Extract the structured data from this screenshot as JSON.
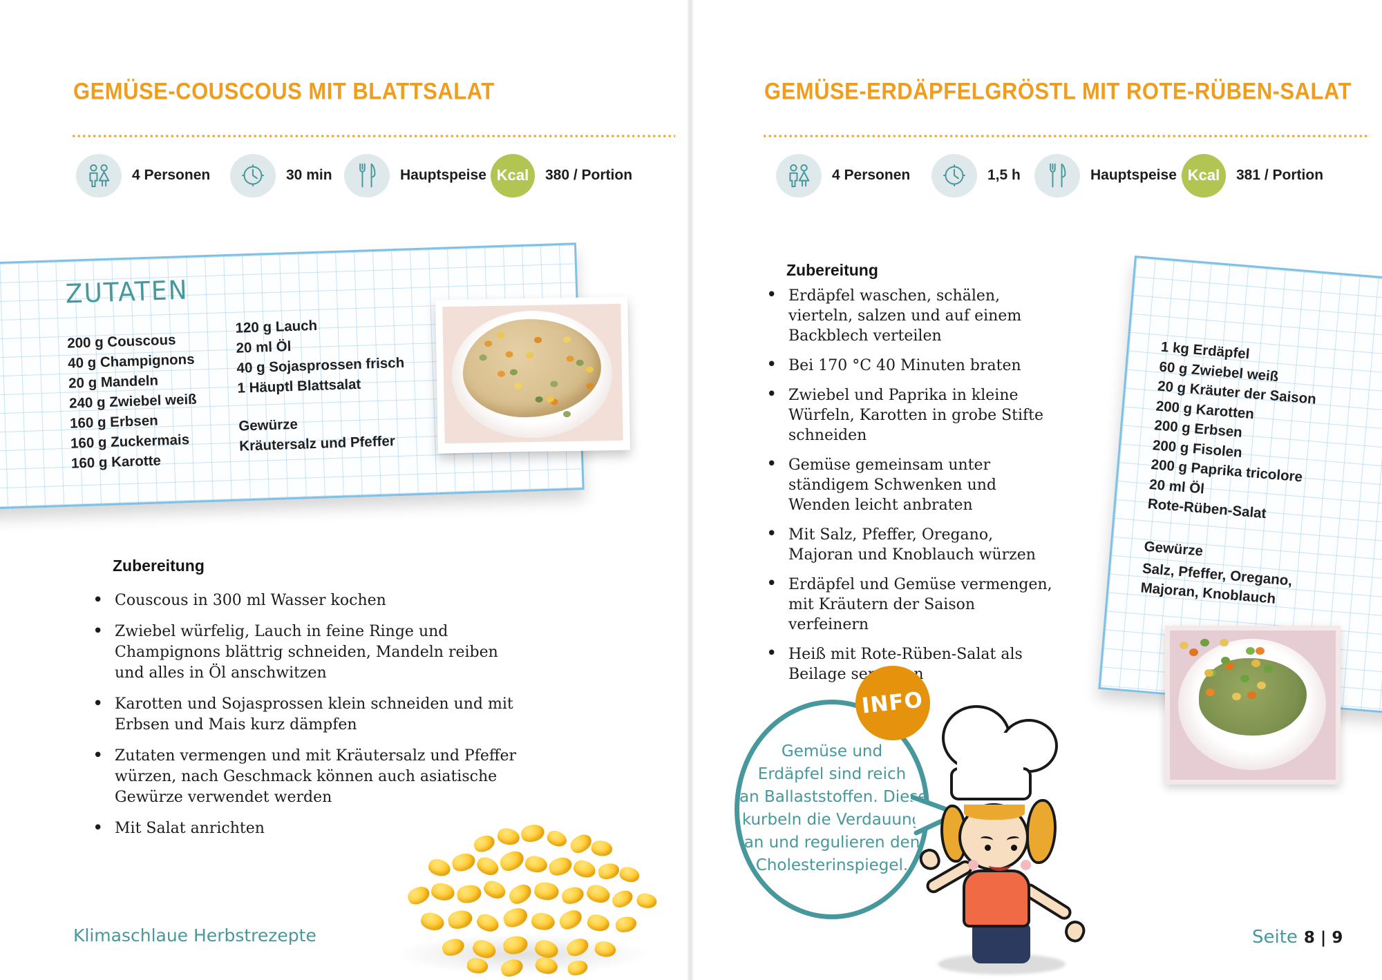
{
  "colors": {
    "accent_orange": "#EF9D1F",
    "accent_teal": "#47989C",
    "kcal_green": "#B2C553",
    "icon_circle_bg": "#DFE9EB",
    "grid_blue": "#CFE3F4",
    "card_border_blue": "#7FC0E4",
    "info_badge_orange": "#E5930C",
    "text_dark": "#1D1D1D"
  },
  "left": {
    "title": "GEMÜSE-COUSCOUS MIT BLATTSALAT",
    "meta": {
      "servings": "4 Personen",
      "time": "30 min",
      "course": "Hauptspeise",
      "kcal_badge": "Kcal",
      "kcal": "380 / Portion"
    },
    "ingredients": {
      "heading": "ZUTATEN",
      "col1": [
        "200 g Couscous",
        "40 g Champignons",
        "20 g Mandeln",
        "240 g Zwiebel weiß",
        "160 g Erbsen",
        "160 g Zuckermais",
        "160 g Karotte"
      ],
      "col2": [
        "120 g Lauch",
        "20 ml Öl",
        "40 g Sojasprossen frisch",
        "1 Häuptl Blattsalat"
      ],
      "spices_heading": "Gewürze",
      "spices": "Kräutersalz und Pfeffer"
    },
    "preparation": {
      "heading": "Zubereitung",
      "steps": [
        "Couscous in 300 ml Wasser kochen",
        "Zwiebel würfelig, Lauch in feine Ringe und Champignons blättrig schneiden, Mandeln reiben und alles in Öl anschwitzen",
        "Karotten und Sojasprossen klein schneiden und mit Erbsen und Mais kurz dämpfen",
        "Zutaten vermengen und mit Kräutersalz und Pfeffer würzen, nach Geschmack können auch asiatische Gewürze verwendet werden",
        "Mit Salat anrichten"
      ]
    },
    "footer": "Klimaschlaue Herbstrezepte"
  },
  "right": {
    "title": "GEMÜSE-ERDÄPFELGRÖSTL MIT ROTE-RÜBEN-SALAT",
    "meta": {
      "servings": "4 Personen",
      "time": "1,5 h",
      "course": "Hauptspeise",
      "kcal_badge": "Kcal",
      "kcal": "381 / Portion"
    },
    "preparation": {
      "heading": "Zubereitung",
      "steps": [
        "Erdäpfel waschen, schälen, vierteln, salzen und auf einem Backblech verteilen",
        "Bei 170 °C 40 Minuten braten",
        "Zwiebel und Paprika in kleine Würfeln, Karotten in grobe Stifte schneiden",
        "Gemüse gemeinsam unter ständigem Schwenken und Wenden leicht anbraten",
        "Mit Salz, Pfeffer, Oregano, Majoran und Knoblauch würzen",
        "Erdäpfel und Gemüse vermengen, mit Kräutern der Saison verfeinern",
        "Heiß mit Rote-Rüben-Salat als Beilage servieren"
      ]
    },
    "ingredients": {
      "items": [
        "1 kg Erdäpfel",
        "60 g Zwiebel weiß",
        "20 g Kräuter der Saison",
        "200 g Karotten",
        "200 g Erbsen",
        "200 g Fisolen",
        "200 g Paprika tricolore",
        "20 ml Öl",
        "Rote-Rüben-Salat"
      ],
      "spices_heading": "Gewürze",
      "spices_lines": [
        "Salz, Pfeffer, Oregano,",
        "Majoran, Knoblauch"
      ]
    },
    "info": {
      "badge": "INFO",
      "lines": [
        "Gemüse und",
        "Erdäpfel sind reich",
        "an Ballaststoffen. Diese",
        "kurbeln die Verdauung",
        "an und regulieren den",
        "Cholesterinspiegel."
      ]
    },
    "footer_label": "Seite",
    "footer_pages": "8 | 9"
  }
}
